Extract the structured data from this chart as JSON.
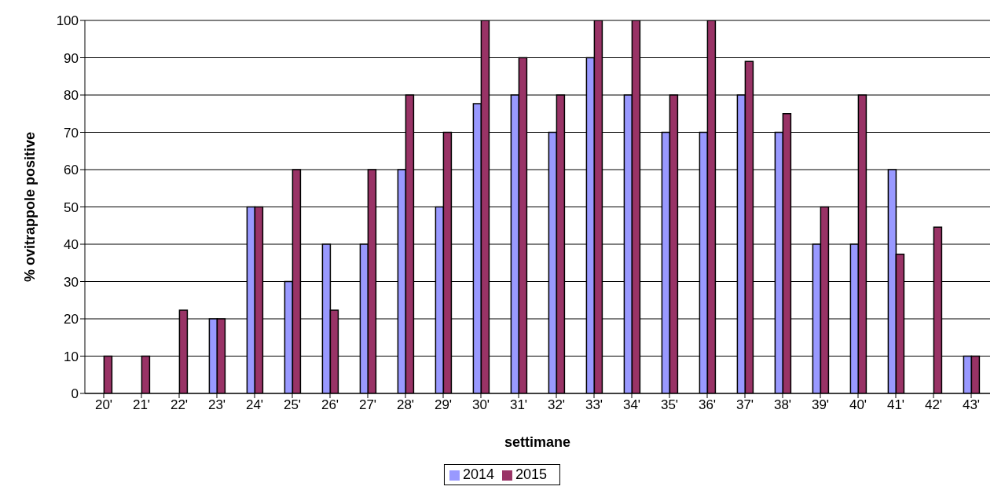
{
  "chart_data": {
    "type": "bar",
    "xlabel": "settimane",
    "ylabel": "% ovitrappole positive",
    "categories": [
      "20'",
      "21'",
      "22'",
      "23'",
      "24'",
      "25'",
      "26'",
      "27'",
      "28'",
      "29'",
      "30'",
      "31'",
      "32'",
      "33'",
      "34'",
      "35'",
      "36'",
      "37'",
      "38'",
      "39'",
      "40'",
      "41'",
      "42'",
      "43'"
    ],
    "series": [
      {
        "name": "2014",
        "color": "#9999ff",
        "values": [
          null,
          null,
          null,
          20,
          50,
          30,
          40,
          40,
          60,
          50,
          77.7,
          80,
          70,
          90,
          80,
          70,
          70,
          80,
          70,
          40,
          40,
          60,
          null,
          10
        ]
      },
      {
        "name": "2015",
        "color": "#993366",
        "values": [
          10,
          10,
          22.3,
          20,
          50,
          60,
          22.3,
          60,
          80,
          70,
          100,
          90,
          80,
          100,
          100,
          80,
          100,
          89,
          75,
          50,
          80,
          37.3,
          44.6,
          10
        ]
      }
    ],
    "ylim": [
      0,
      100
    ],
    "yticks": [
      0,
      10,
      20,
      30,
      40,
      50,
      60,
      70,
      80,
      90,
      100
    ],
    "grid": "y",
    "legend": "bottom"
  }
}
